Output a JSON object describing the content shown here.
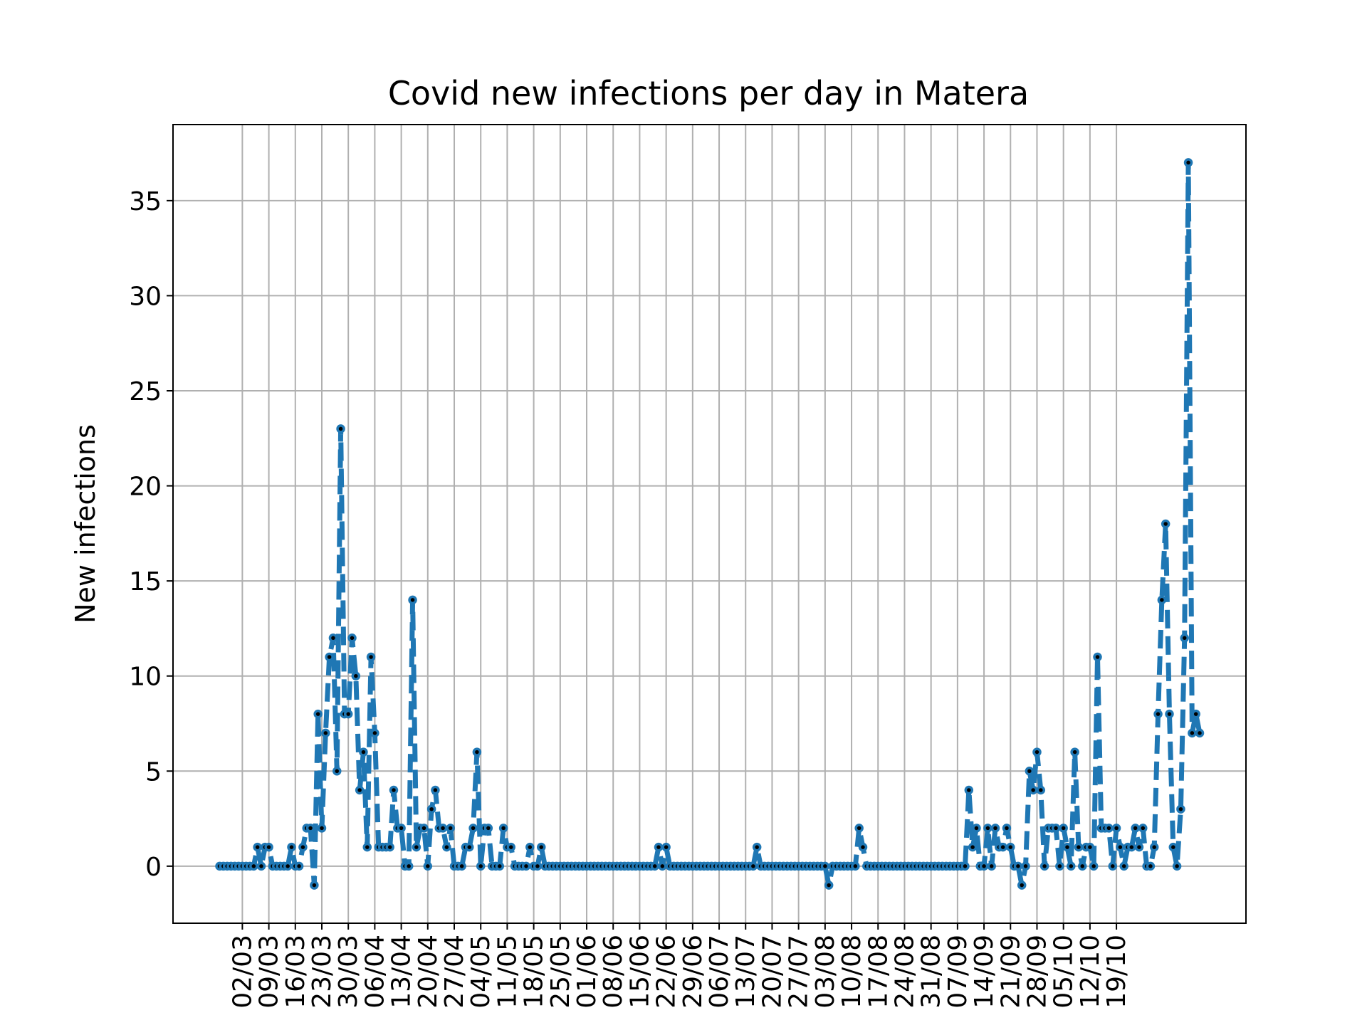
{
  "chart_data": {
    "type": "line",
    "title": "Covid new infections per day in Matera",
    "xlabel": "",
    "ylabel": "New infections",
    "start_date": "2020-02-25",
    "x_tick_labels": [
      "02/03",
      "09/03",
      "16/03",
      "23/03",
      "30/03",
      "06/04",
      "13/04",
      "20/04",
      "27/04",
      "04/05",
      "11/05",
      "18/05",
      "25/05",
      "01/06",
      "08/06",
      "15/06",
      "22/06",
      "29/06",
      "06/07",
      "13/07",
      "20/07",
      "27/07",
      "03/08",
      "10/08",
      "17/08",
      "24/08",
      "31/08",
      "07/09",
      "14/09",
      "21/09",
      "28/09",
      "05/10",
      "12/10",
      "19/10"
    ],
    "y_ticks": [
      0,
      5,
      10,
      15,
      20,
      25,
      30,
      35
    ],
    "ylim": [
      -3,
      39
    ],
    "grid": true,
    "line_style": "dashed",
    "line_color": "#1f77b4",
    "marker_color": "#000000",
    "values": [
      0,
      0,
      0,
      0,
      0,
      0,
      0,
      0,
      0,
      0,
      1,
      0,
      1,
      1,
      0,
      0,
      0,
      0,
      0,
      1,
      0,
      0,
      1,
      2,
      2,
      -1,
      8,
      2,
      7,
      11,
      12,
      5,
      23,
      8,
      8,
      12,
      10,
      4,
      6,
      1,
      11,
      7,
      1,
      1,
      1,
      1,
      4,
      2,
      2,
      0,
      0,
      14,
      1,
      2,
      2,
      0,
      3,
      4,
      2,
      2,
      1,
      2,
      0,
      0,
      0,
      1,
      1,
      2,
      6,
      0,
      2,
      2,
      0,
      0,
      0,
      2,
      1,
      1,
      0,
      0,
      0,
      0,
      1,
      0,
      0,
      1,
      0,
      0,
      0,
      0,
      0,
      0,
      0,
      0,
      0,
      0,
      0,
      0,
      0,
      0,
      0,
      0,
      0,
      0,
      0,
      0,
      0,
      0,
      0,
      0,
      0,
      0,
      0,
      0,
      0,
      0,
      1,
      0,
      1,
      0,
      0,
      0,
      0,
      0,
      0,
      0,
      0,
      0,
      0,
      0,
      0,
      0,
      0,
      0,
      0,
      0,
      0,
      0,
      0,
      0,
      0,
      0,
      1,
      0,
      0,
      0,
      0,
      0,
      0,
      0,
      0,
      0,
      0,
      0,
      0,
      0,
      0,
      0,
      0,
      0,
      0,
      -1,
      0,
      0,
      0,
      0,
      0,
      0,
      0,
      2,
      1,
      0,
      0,
      0,
      0,
      0,
      0,
      0,
      0,
      0,
      0,
      0,
      0,
      0,
      0,
      0,
      0,
      0,
      0,
      0,
      0,
      0,
      0,
      0,
      0,
      0,
      0,
      0,
      4,
      1,
      2,
      0,
      0,
      2,
      0,
      2,
      1,
      1,
      2,
      1,
      0,
      0,
      -1,
      0,
      5,
      4,
      6,
      4,
      0,
      2,
      2,
      2,
      0,
      2,
      1,
      0,
      6,
      1,
      0,
      1,
      1,
      0,
      11,
      2,
      2,
      2,
      0,
      2,
      1,
      0,
      1,
      1,
      2,
      1,
      2,
      0,
      0,
      1,
      8,
      14,
      18,
      8,
      1,
      0,
      3,
      12,
      37,
      7,
      8,
      7
    ]
  }
}
